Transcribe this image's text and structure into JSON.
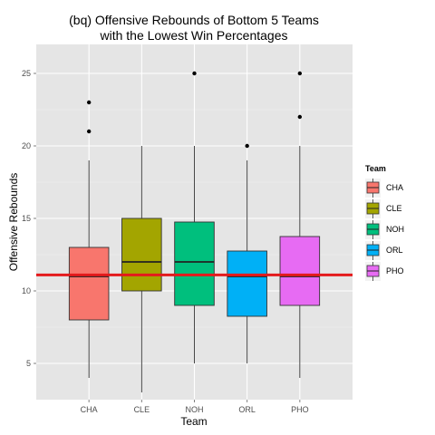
{
  "chart_data": {
    "type": "box",
    "title_lines": [
      "(bq) Offensive Rebounds of Bottom 5 Teams",
      "with the Lowest Win Percentages"
    ],
    "xlabel": "Team",
    "ylabel": "Offensive Rebounds",
    "categories": [
      "CHA",
      "CLE",
      "NOH",
      "ORL",
      "PHO"
    ],
    "ylim": [
      2.5,
      27
    ],
    "yticks": [
      5,
      10,
      15,
      20,
      25
    ],
    "grid": true,
    "reference_line": {
      "y": 11.1,
      "color": "#e41a1c"
    },
    "legend": {
      "title": "Team",
      "placement": "right",
      "entries": [
        "CHA",
        "CLE",
        "NOH",
        "ORL",
        "PHO"
      ]
    },
    "boxes": [
      {
        "team": "CHA",
        "min": 4,
        "q1": 8,
        "median": 11,
        "q3": 13,
        "max": 19,
        "outliers": [
          21,
          23
        ],
        "color": "#F8766D"
      },
      {
        "team": "CLE",
        "min": 3,
        "q1": 10,
        "median": 12,
        "q3": 15,
        "max": 20,
        "outliers": [],
        "color": "#A3A500"
      },
      {
        "team": "NOH",
        "min": 5,
        "q1": 9,
        "median": 12,
        "q3": 14.75,
        "max": 20,
        "outliers": [
          25
        ],
        "color": "#00BF7D"
      },
      {
        "team": "ORL",
        "min": 5,
        "q1": 8.25,
        "median": 11,
        "q3": 12.75,
        "max": 19,
        "outliers": [
          20
        ],
        "color": "#00B0F6"
      },
      {
        "team": "PHO",
        "min": 4,
        "q1": 9,
        "median": 11,
        "q3": 13.75,
        "max": 20,
        "outliers": [
          22,
          25
        ],
        "color": "#E76BF3"
      }
    ]
  }
}
